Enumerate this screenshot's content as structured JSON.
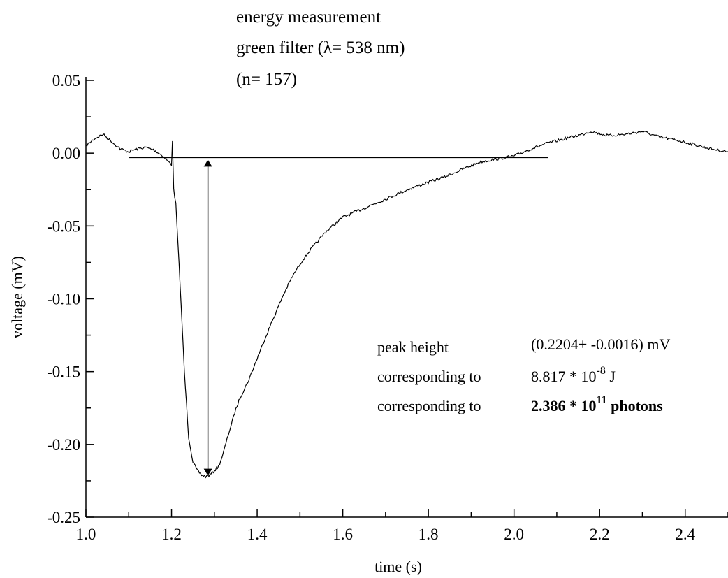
{
  "chart_data": {
    "type": "line",
    "title_lines": [
      "energy measurement",
      "green filter (λ= 538 nm)",
      "(n=   157)"
    ],
    "xlabel": "time (s)",
    "ylabel": "voltage (mV)",
    "xlim": [
      1.0,
      2.5
    ],
    "ylim": [
      -0.25,
      0.05
    ],
    "x_ticks": [
      1.0,
      1.2,
      1.4,
      1.6,
      1.8,
      2.0,
      2.2,
      2.4
    ],
    "x_tick_labels": [
      "1.0",
      "1.2",
      "1.4",
      "1.6",
      "1.8",
      "2.0",
      "2.2",
      "2.4"
    ],
    "y_ticks": [
      0.05,
      0.0,
      -0.05,
      -0.1,
      -0.15,
      -0.2,
      -0.25
    ],
    "y_tick_labels": [
      "0.05",
      "0.00",
      "-0.05",
      "-0.10",
      "-0.15",
      "-0.20",
      "-0.25"
    ],
    "grid": false,
    "series": [
      {
        "x": [
          1.0,
          1.02,
          1.04,
          1.06,
          1.08,
          1.1,
          1.12,
          1.14,
          1.16,
          1.18,
          1.2,
          1.202,
          1.205,
          1.21,
          1.22,
          1.23,
          1.24,
          1.25,
          1.26,
          1.27,
          1.28,
          1.29,
          1.3,
          1.31,
          1.32,
          1.33,
          1.34,
          1.35,
          1.36,
          1.38,
          1.4,
          1.42,
          1.44,
          1.46,
          1.48,
          1.5,
          1.52,
          1.54,
          1.56,
          1.58,
          1.6,
          1.64,
          1.68,
          1.72,
          1.76,
          1.8,
          1.84,
          1.88,
          1.92,
          1.96,
          2.0,
          2.04,
          2.08,
          2.12,
          2.16,
          2.18,
          2.22,
          2.26,
          2.3,
          2.34,
          2.38,
          2.42,
          2.46,
          2.5
        ],
        "y": [
          0.005,
          0.01,
          0.013,
          0.008,
          0.003,
          0.001,
          0.003,
          0.004,
          0.002,
          -0.002,
          -0.008,
          0.009,
          -0.025,
          -0.035,
          -0.09,
          -0.15,
          -0.195,
          -0.212,
          -0.218,
          -0.221,
          -0.222,
          -0.221,
          -0.218,
          -0.215,
          -0.207,
          -0.196,
          -0.186,
          -0.176,
          -0.168,
          -0.156,
          -0.141,
          -0.126,
          -0.112,
          -0.098,
          -0.086,
          -0.076,
          -0.068,
          -0.061,
          -0.054,
          -0.049,
          -0.044,
          -0.039,
          -0.034,
          -0.029,
          -0.024,
          -0.02,
          -0.016,
          -0.011,
          -0.006,
          -0.004,
          -0.002,
          0.003,
          0.007,
          0.01,
          0.013,
          0.015,
          0.012,
          0.013,
          0.015,
          0.011,
          0.009,
          0.006,
          0.003,
          0.001
        ]
      }
    ],
    "annotations": {
      "baseline": {
        "x": [
          1.1,
          2.08
        ],
        "y": -0.003
      },
      "arrow": {
        "x": 1.285,
        "y_top": -0.003,
        "y_bottom": -0.222
      },
      "rows": [
        {
          "label": "peak height",
          "value": "(0.2204+ -0.0016) mV"
        },
        {
          "label": "corresponding to",
          "value_pre": "8.817 * 10",
          "value_exp": "-8",
          "value_post": " J"
        },
        {
          "label": "corresponding to",
          "value_pre": "2.386 * 10",
          "value_exp": "11",
          "value_post": " photons",
          "bold": true
        }
      ]
    }
  }
}
